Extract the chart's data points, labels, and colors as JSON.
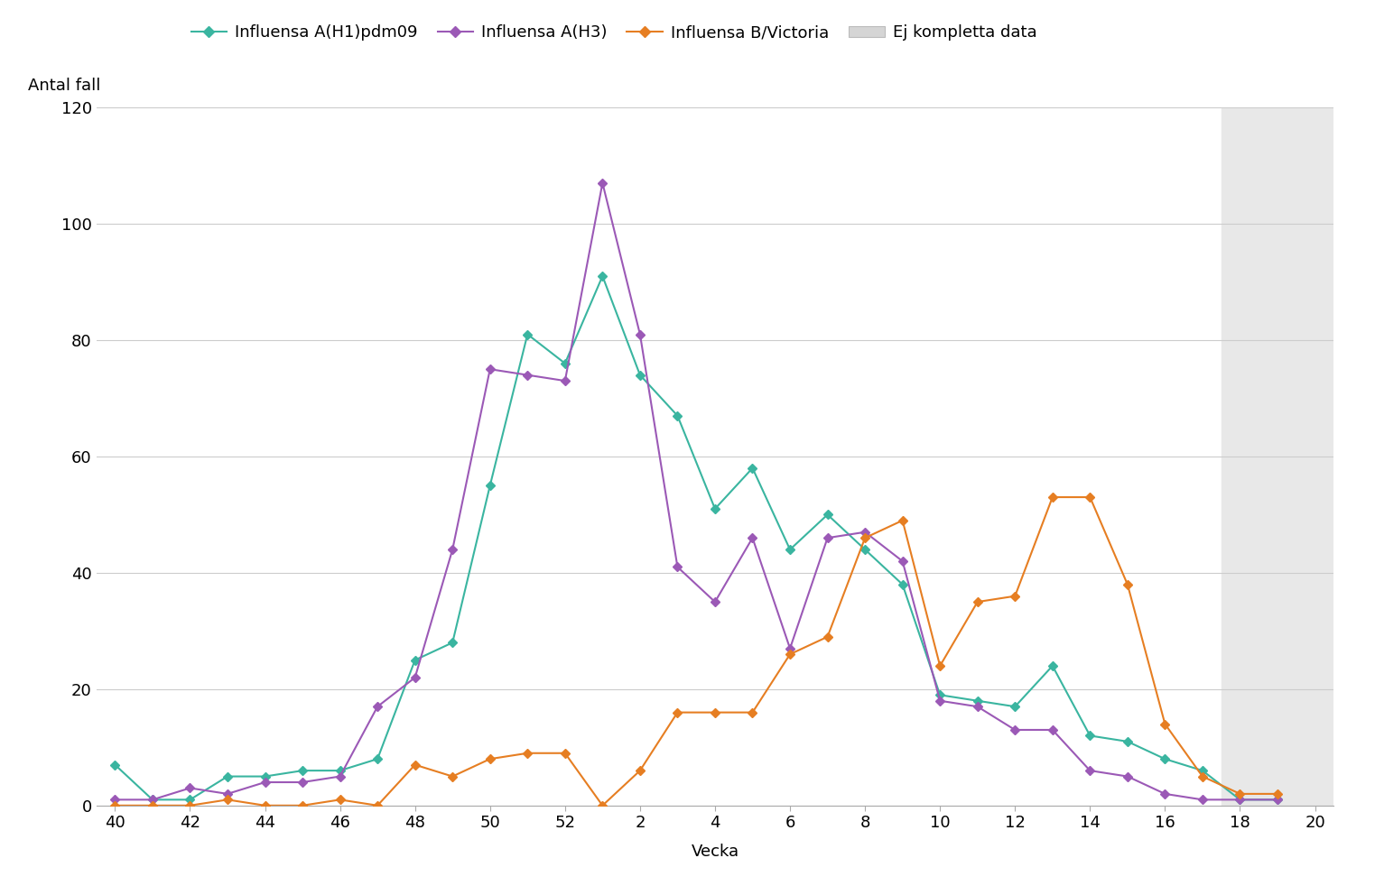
{
  "ylabel": "Antal fall",
  "xlabel": "Vecka",
  "background_color": "#ffffff",
  "incomplete_shade_color": "#e8e8e8",
  "ylim": [
    0,
    120
  ],
  "yticks": [
    0,
    20,
    40,
    60,
    80,
    100,
    120
  ],
  "xtick_labels": [
    "40",
    "42",
    "44",
    "46",
    "48",
    "50",
    "52",
    "2",
    "4",
    "6",
    "8",
    "10",
    "12",
    "14",
    "16",
    "18",
    "20"
  ],
  "xtick_positions": [
    40,
    42,
    44,
    46,
    48,
    50,
    52,
    54,
    56,
    58,
    60,
    62,
    64,
    66,
    68,
    70,
    72
  ],
  "incomplete_x_start": 69.5,
  "xlim": [
    39.5,
    72.5
  ],
  "series": [
    {
      "name": "Influensa A(H1)pdm09",
      "color": "#3ab5a0",
      "marker": "D",
      "markersize": 5,
      "x": [
        40,
        41,
        42,
        43,
        44,
        45,
        46,
        47,
        48,
        49,
        50,
        51,
        52,
        53,
        54,
        55,
        56,
        57,
        58,
        59,
        60,
        61,
        62,
        63,
        64,
        65,
        66,
        67,
        68,
        69,
        70,
        71
      ],
      "y": [
        7,
        1,
        1,
        5,
        5,
        6,
        6,
        8,
        25,
        28,
        55,
        81,
        76,
        91,
        74,
        67,
        51,
        58,
        44,
        50,
        44,
        38,
        19,
        18,
        17,
        24,
        12,
        11,
        8,
        6,
        1,
        1
      ]
    },
    {
      "name": "Influensa A(H3)",
      "color": "#9b59b6",
      "marker": "D",
      "markersize": 5,
      "x": [
        40,
        41,
        42,
        43,
        44,
        45,
        46,
        47,
        48,
        49,
        50,
        51,
        52,
        53,
        54,
        55,
        56,
        57,
        58,
        59,
        60,
        61,
        62,
        63,
        64,
        65,
        66,
        67,
        68,
        69,
        70,
        71
      ],
      "y": [
        1,
        1,
        3,
        2,
        4,
        4,
        5,
        17,
        22,
        44,
        75,
        74,
        73,
        107,
        81,
        41,
        35,
        46,
        27,
        46,
        47,
        42,
        18,
        17,
        13,
        13,
        6,
        5,
        2,
        1,
        1,
        1
      ]
    },
    {
      "name": "Influensa B/Victoria",
      "color": "#e67e22",
      "marker": "D",
      "markersize": 5,
      "x": [
        40,
        41,
        42,
        43,
        44,
        45,
        46,
        47,
        48,
        49,
        50,
        51,
        52,
        53,
        54,
        55,
        56,
        57,
        58,
        59,
        60,
        61,
        62,
        63,
        64,
        65,
        66,
        67,
        68,
        69,
        70,
        71
      ],
      "y": [
        0,
        0,
        0,
        1,
        0,
        0,
        1,
        0,
        7,
        5,
        8,
        9,
        9,
        0,
        6,
        16,
        16,
        16,
        26,
        29,
        46,
        49,
        24,
        35,
        36,
        53,
        53,
        38,
        14,
        5,
        2,
        2
      ]
    }
  ],
  "legend_entries": [
    {
      "label": "Influensa A(H1)pdm09",
      "color": "#3ab5a0",
      "marker": "D",
      "patch": false
    },
    {
      "label": "Influensa A(H3)",
      "color": "#9b59b6",
      "marker": "D",
      "patch": false
    },
    {
      "label": "Influensa B/Victoria",
      "color": "#e67e22",
      "marker": "D",
      "patch": false
    },
    {
      "label": "Ej kompletta data",
      "color": "#d5d5d5",
      "patch": true
    }
  ],
  "legend_fontsize": 13,
  "axis_label_fontsize": 13,
  "tick_fontsize": 13,
  "linewidth": 1.5,
  "grid_color": "#cccccc",
  "spine_color": "#aaaaaa"
}
